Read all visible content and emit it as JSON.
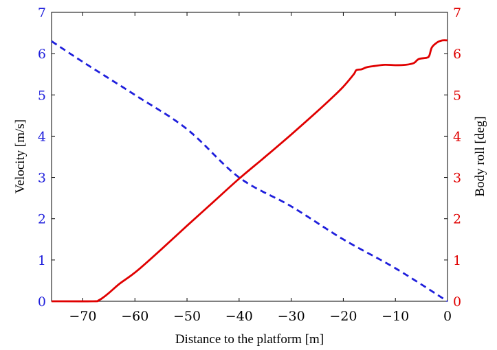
{
  "chart_data": {
    "type": "line",
    "xlabel": "Distance to the platform [m]",
    "ylabel_left": "Velocity [m/s]",
    "ylabel_right": "Body roll [deg]",
    "xlim": [
      -76,
      0
    ],
    "ylim_left": [
      0,
      7
    ],
    "ylim_right": [
      0,
      7
    ],
    "x_ticks": [
      -70,
      -60,
      -50,
      -40,
      -30,
      -20,
      -10,
      0
    ],
    "x_tick_labels": [
      "−70",
      "−60",
      "−50",
      "−40",
      "−30",
      "−20",
      "−10",
      "0"
    ],
    "y_ticks_left": [
      0,
      1,
      2,
      3,
      4,
      5,
      6,
      7
    ],
    "y_tick_labels_left": [
      "0",
      "1",
      "2",
      "3",
      "4",
      "5",
      "6",
      "7"
    ],
    "y_ticks_right": [
      0,
      1,
      2,
      3,
      4,
      5,
      6,
      7
    ],
    "y_tick_labels_right": [
      "0",
      "1",
      "2",
      "3",
      "4",
      "5",
      "6",
      "7"
    ],
    "grid": false,
    "colors": {
      "left_axis": "#1f1fdc",
      "right_axis": "#e00000"
    },
    "series": [
      {
        "axis": "left",
        "color": "#1f1fdc",
        "style": "dashed",
        "x": [
          -76,
          -70,
          -60,
          -50,
          -40,
          -30,
          -20,
          -10,
          0
        ],
        "y": [
          6.3,
          5.8,
          5.0,
          4.17,
          3.0,
          2.3,
          1.5,
          0.8,
          0
        ]
      },
      {
        "axis": "right",
        "color": "#e00000",
        "style": "solid",
        "x": [
          -76,
          -68,
          -67,
          -66,
          -65,
          -63,
          -61,
          -59,
          -55,
          -50,
          -45,
          -40,
          -35,
          -30,
          -25,
          -22,
          -20,
          -18,
          -17.5,
          -16.5,
          -15.5,
          -14,
          -12,
          -10,
          -8,
          -6.5,
          -5.5,
          -4,
          -3.5,
          -3,
          -2,
          -1,
          0
        ],
        "y": [
          0,
          0,
          0.02,
          0.1,
          0.2,
          0.42,
          0.6,
          0.8,
          1.25,
          1.83,
          2.4,
          2.97,
          3.5,
          4.04,
          4.6,
          4.95,
          5.2,
          5.5,
          5.6,
          5.62,
          5.67,
          5.7,
          5.73,
          5.72,
          5.73,
          5.77,
          5.87,
          5.9,
          5.95,
          6.15,
          6.27,
          6.32,
          6.32
        ]
      }
    ]
  }
}
